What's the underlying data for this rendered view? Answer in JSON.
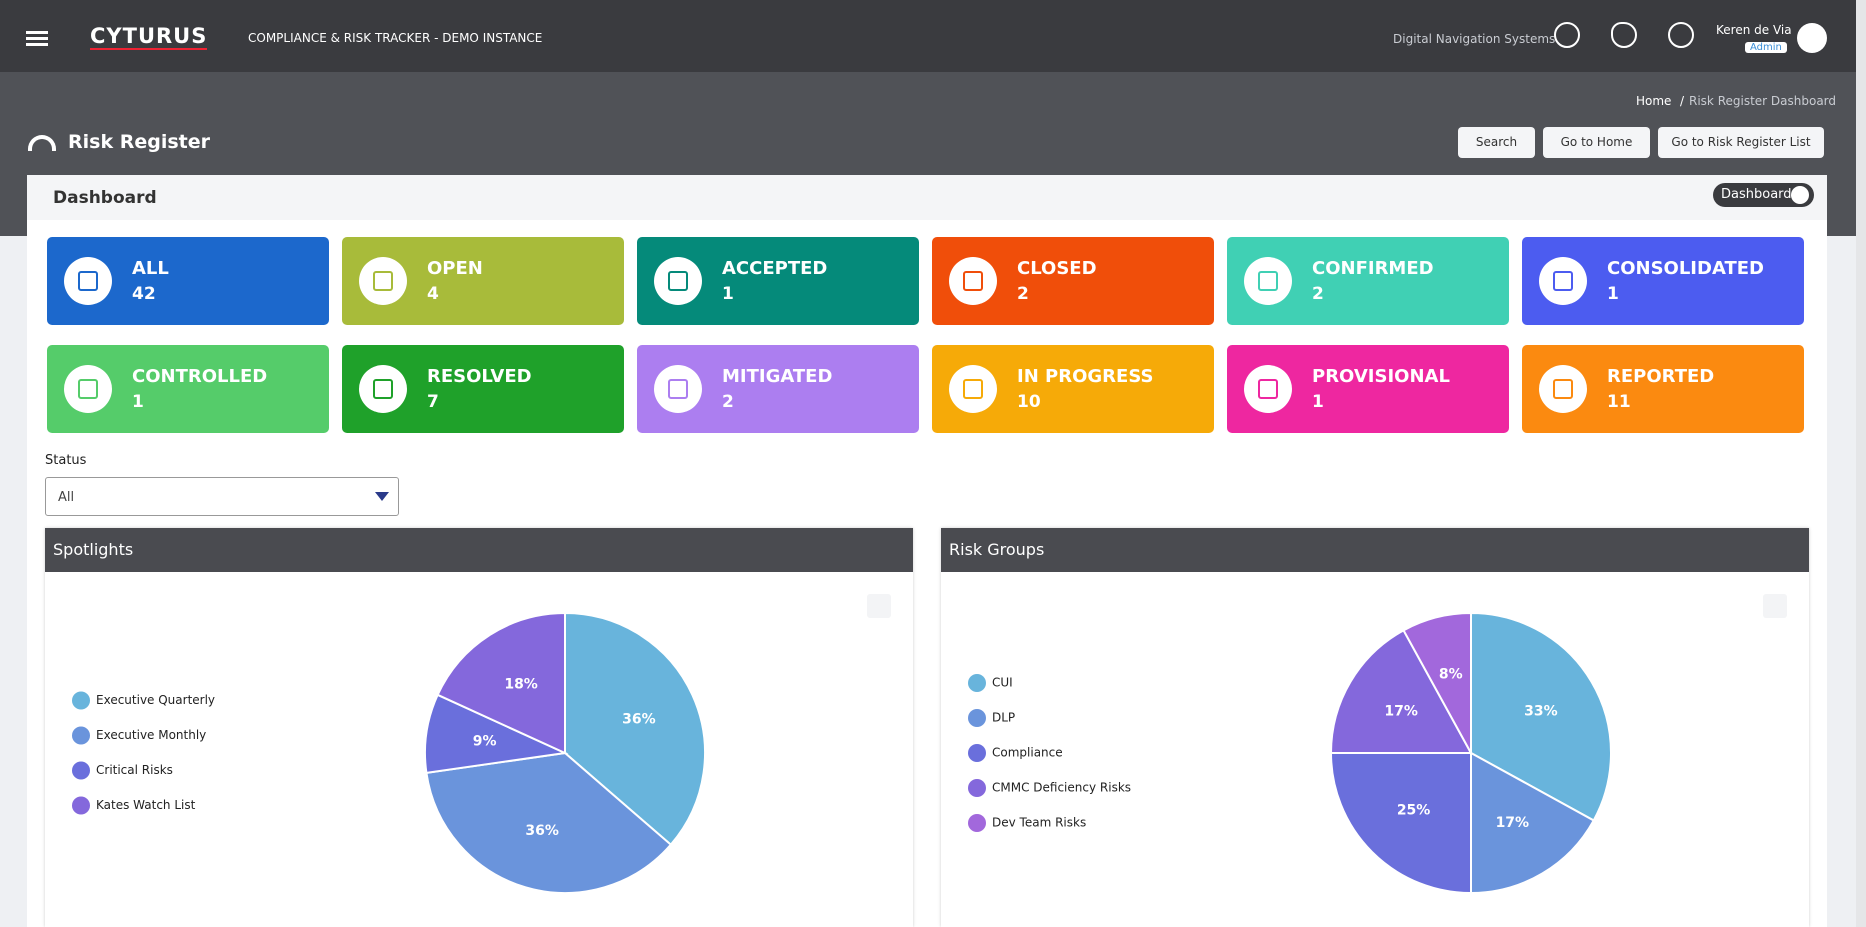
{
  "header": {
    "logo": "CYTURUS",
    "app_title": "COMPLIANCE & RISK TRACKER - DEMO INSTANCE",
    "organization": "Digital Navigation Systems",
    "user_name": "Keren de Via",
    "user_role": "Admin"
  },
  "breadcrumb": [
    "Home",
    "Risk Register Dashboard"
  ],
  "page": {
    "title": "Risk Register",
    "buttons": [
      "Search",
      "Go to Home",
      "Go to Risk Register List"
    ]
  },
  "panel": {
    "title": "Dashboard",
    "toggle": "Dashboard"
  },
  "cards": [
    {
      "label": "ALL",
      "count": 42,
      "color": "#1c68cc"
    },
    {
      "label": "OPEN",
      "count": 4,
      "color": "#a8bb3a"
    },
    {
      "label": "ACCEPTED",
      "count": 1,
      "color": "#058a7a"
    },
    {
      "label": "CLOSED",
      "count": 2,
      "color": "#f04e0a"
    },
    {
      "label": "CONFIRMED",
      "count": 2,
      "color": "#40d0b4"
    },
    {
      "label": "CONSOLIDATED",
      "count": 1,
      "color": "#4c5cf0"
    },
    {
      "label": "CONTROLLED",
      "count": 1,
      "color": "#55cc6a"
    },
    {
      "label": "RESOLVED",
      "count": 7,
      "color": "#1fa12a"
    },
    {
      "label": "MITIGATED",
      "count": 2,
      "color": "#ac7ef0"
    },
    {
      "label": "IN PROGRESS",
      "count": 10,
      "color": "#f6aa08"
    },
    {
      "label": "PROVISIONAL",
      "count": 1,
      "color": "#ee27a0"
    },
    {
      "label": "REPORTED",
      "count": 11,
      "color": "#fb8a10"
    }
  ],
  "filter": {
    "label": "Status",
    "selected": "All"
  },
  "chart_data": [
    {
      "type": "pie",
      "title": "Spotlights",
      "categories": [
        "Executive Quarterly",
        "Executive Monthly",
        "Critical Risks",
        "Kates Watch List"
      ],
      "values": [
        36,
        36,
        9,
        18
      ],
      "value_labels": [
        "36%",
        "36%",
        "9%",
        "18%"
      ],
      "colors": [
        "#68b4dc",
        "#6a94dc",
        "#6a6fdc",
        "#8468dc"
      ]
    },
    {
      "type": "pie",
      "title": "Risk Groups",
      "categories": [
        "CUI",
        "DLP",
        "Compliance",
        "CMMC Deficiency Risks",
        "Dev Team Risks"
      ],
      "values": [
        33,
        17,
        25,
        17,
        8
      ],
      "value_labels": [
        "33%",
        "17%",
        "25%",
        "17%",
        "8%"
      ],
      "colors": [
        "#68b4dc",
        "#6a94dc",
        "#6a6fdc",
        "#8468dc",
        "#a268dc"
      ]
    }
  ]
}
